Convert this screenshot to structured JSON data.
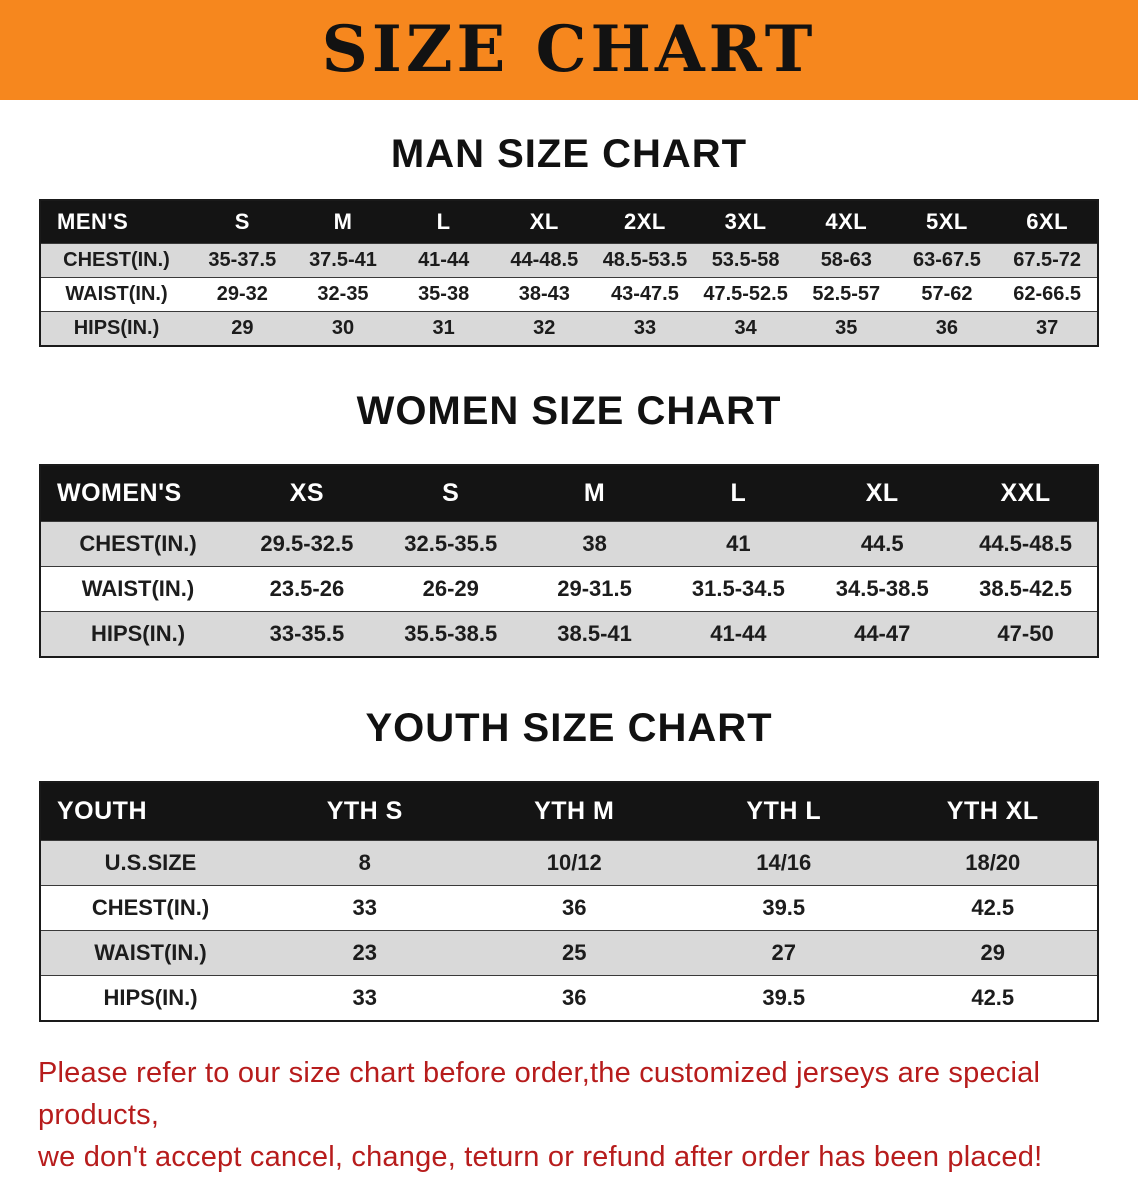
{
  "banner": {
    "title": "SIZE CHART"
  },
  "theme": {
    "banner_bg": "#F6871E",
    "table_header_bg": "#141414",
    "row_stripe": "#D9D9D9",
    "notice_color": "#B71C1C"
  },
  "sections": [
    {
      "heading": "MAN SIZE CHART",
      "table": {
        "header": [
          "MEN'S",
          "S",
          "M",
          "L",
          "XL",
          "2XL",
          "3XL",
          "4XL",
          "5XL",
          "6XL"
        ],
        "rows": [
          [
            "CHEST(IN.)",
            "35-37.5",
            "37.5-41",
            "41-44",
            "44-48.5",
            "48.5-53.5",
            "53.5-58",
            "58-63",
            "63-67.5",
            "67.5-72"
          ],
          [
            "WAIST(IN.)",
            "29-32",
            "32-35",
            "35-38",
            "38-43",
            "43-47.5",
            "47.5-52.5",
            "52.5-57",
            "57-62",
            "62-66.5"
          ],
          [
            "HIPS(IN.)",
            "29",
            "30",
            "31",
            "32",
            "33",
            "34",
            "35",
            "36",
            "37"
          ]
        ]
      }
    },
    {
      "heading": "WOMEN SIZE CHART",
      "table": {
        "header": [
          "WOMEN'S",
          "XS",
          "S",
          "M",
          "L",
          "XL",
          "XXL"
        ],
        "rows": [
          [
            "CHEST(IN.)",
            "29.5-32.5",
            "32.5-35.5",
            "38",
            "41",
            "44.5",
            "44.5-48.5"
          ],
          [
            "WAIST(IN.)",
            "23.5-26",
            "26-29",
            "29-31.5",
            "31.5-34.5",
            "34.5-38.5",
            "38.5-42.5"
          ],
          [
            "HIPS(IN.)",
            "33-35.5",
            "35.5-38.5",
            "38.5-41",
            "41-44",
            "44-47",
            "47-50"
          ]
        ]
      }
    },
    {
      "heading": "YOUTH SIZE CHART",
      "table": {
        "header": [
          "YOUTH",
          "YTH S",
          "YTH M",
          "YTH L",
          "YTH XL"
        ],
        "rows": [
          [
            "U.S.SIZE",
            "8",
            "10/12",
            "14/16",
            "18/20"
          ],
          [
            "CHEST(IN.)",
            "33",
            "36",
            "39.5",
            "42.5"
          ],
          [
            "WAIST(IN.)",
            "23",
            "25",
            "27",
            "29"
          ],
          [
            "HIPS(IN.)",
            "33",
            "36",
            "39.5",
            "42.5"
          ]
        ]
      }
    }
  ],
  "footer": {
    "line1": "Please refer to our size chart before order,the customized jerseys are special products,",
    "line2": "we don't accept cancel, change, teturn or refund after order has been placed!"
  }
}
